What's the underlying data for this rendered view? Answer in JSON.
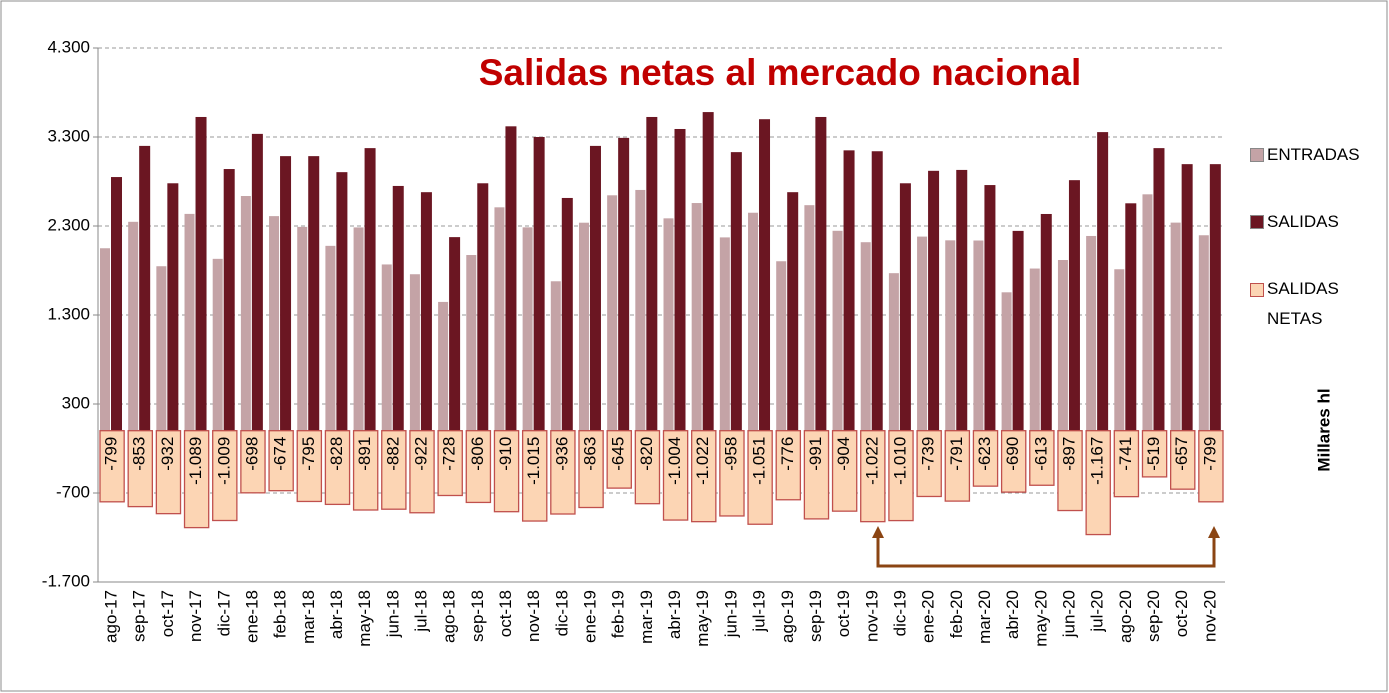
{
  "chart_data": {
    "type": "bar",
    "title": "Salidas netas al mercado nacional",
    "y_label": "Millares hl",
    "categories": [
      "ago-17",
      "sep-17",
      "oct-17",
      "nov-17",
      "dic-17",
      "ene-18",
      "feb-18",
      "mar-18",
      "abr-18",
      "may-18",
      "jun-18",
      "jul-18",
      "ago-18",
      "sep-18",
      "oct-18",
      "nov-18",
      "dic-18",
      "ene-19",
      "feb-19",
      "mar-19",
      "abr-19",
      "may-19",
      "jun-19",
      "jul-19",
      "ago-19",
      "sep-19",
      "oct-19",
      "nov-19",
      "dic-19",
      "ene-20",
      "feb-20",
      "mar-20",
      "abr-20",
      "may-20",
      "jun-20",
      "jul-20",
      "ago-20",
      "sep-20",
      "oct-20",
      "nov-20"
    ],
    "series": [
      {
        "name": "ENTRADAS",
        "color": "#c4a3a6",
        "values": [
          2050,
          2347,
          1848,
          2436,
          1931,
          2637,
          2411,
          2290,
          2077,
          2284,
          1868,
          1758,
          1447,
          1974,
          2510,
          2285,
          1679,
          2337,
          2645,
          2705,
          2386,
          2558,
          2172,
          2449,
          1904,
          2534,
          2246,
          2118,
          1770,
          2181,
          2139,
          2137,
          1555,
          1822,
          1918,
          2188,
          1814,
          2656,
          2338,
          2196
        ]
      },
      {
        "name": "SALIDAS",
        "color": "#6b1622",
        "values": [
          2850,
          3200,
          2780,
          3525,
          2940,
          3335,
          3085,
          3085,
          2905,
          3175,
          2750,
          2680,
          2175,
          2780,
          3420,
          3300,
          2615,
          3200,
          3290,
          3525,
          3390,
          3580,
          3130,
          3500,
          2680,
          3525,
          3150,
          3140,
          2780,
          2920,
          2930,
          2760,
          2245,
          2435,
          2815,
          3355,
          2555,
          3175,
          2995,
          2995
        ]
      },
      {
        "name": "SALIDAS NETAS",
        "color": "#fcd5b4",
        "values": [
          -799,
          -853,
          -932,
          -1089,
          -1009,
          -698,
          -674,
          -795,
          -828,
          -891,
          -882,
          -922,
          -728,
          -806,
          -910,
          -1015,
          -936,
          -863,
          -645,
          -820,
          -1004,
          -1022,
          -958,
          -1051,
          -776,
          -991,
          -904,
          -1022,
          -1010,
          -739,
          -791,
          -623,
          -690,
          -613,
          -897,
          -1167,
          -741,
          -519,
          -657,
          -799
        ],
        "value_labels": [
          "-799",
          "-853",
          "-932",
          "-1.089",
          "-1.009",
          "-698",
          "-674",
          "-795",
          "-828",
          "-891",
          "-882",
          "-922",
          "-728",
          "-806",
          "-910",
          "-1.015",
          "-936",
          "-863",
          "-645",
          "-820",
          "-1.004",
          "-1.022",
          "-958",
          "-1.051",
          "-776",
          "-991",
          "-904",
          "-1.022",
          "-1.010",
          "-739",
          "-791",
          "-623",
          "-690",
          "-613",
          "-897",
          "-1.167",
          "-741",
          "-519",
          "-657",
          "-799"
        ]
      }
    ],
    "ylim": [
      -1700,
      4300
    ],
    "yticks": [
      {
        "value": -1700,
        "label": "-1.700"
      },
      -700,
      300,
      {
        "value": 1300,
        "label": "1.300"
      },
      {
        "value": 2300,
        "label": "2.300"
      },
      {
        "value": 3300,
        "label": "3.300"
      },
      {
        "value": 4300,
        "label": "4.300"
      }
    ],
    "grid": true
  }
}
